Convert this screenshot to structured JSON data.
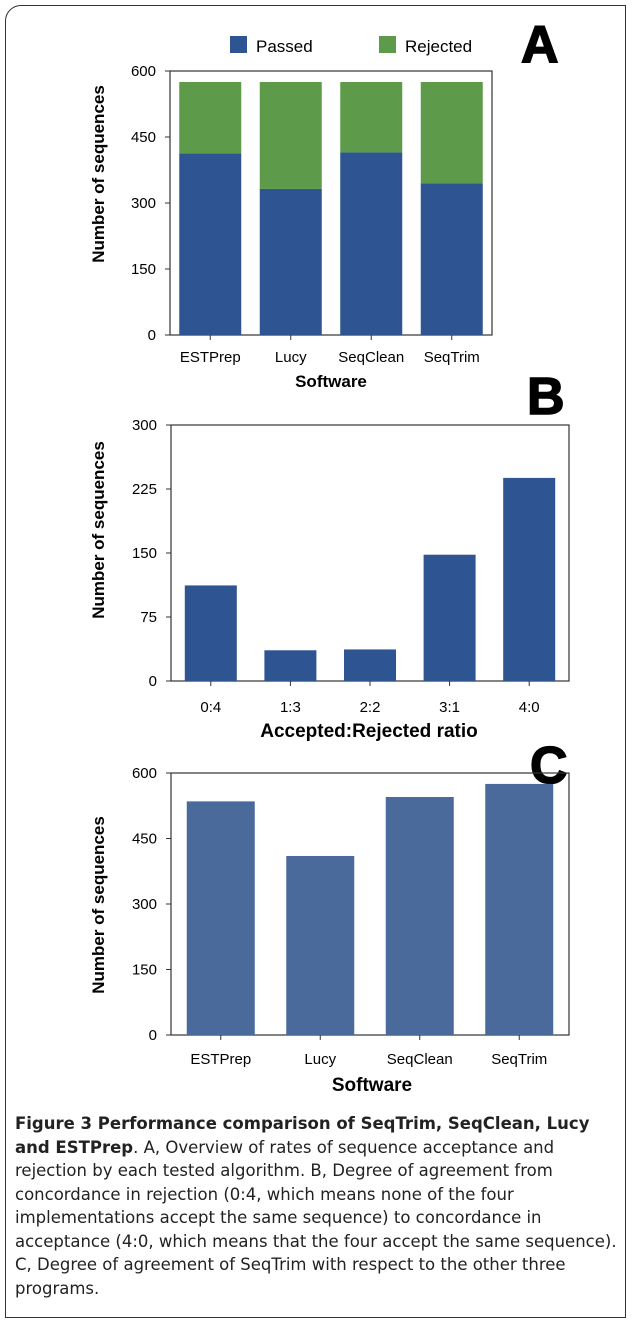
{
  "colors": {
    "passed": "#2e5491",
    "rejected": "#5d9b4a",
    "panel_b_bar": "#2e5491",
    "panel_c_bar": "#4a6a9b"
  },
  "chart_data": [
    {
      "panel": "A",
      "type": "bar",
      "stacked": true,
      "categories": [
        "ESTPrep",
        "Lucy",
        "SeqClean",
        "SeqTrim"
      ],
      "series": [
        {
          "name": "Passed",
          "values": [
            413,
            332,
            415,
            345
          ]
        },
        {
          "name": "Rejected",
          "values": [
            162,
            243,
            160,
            230
          ]
        }
      ],
      "xlabel": "Software",
      "ylabel": "Number of sequences",
      "ylim": [
        0,
        600
      ],
      "yticks": [
        "0",
        "150",
        "300",
        "450",
        "600"
      ],
      "legend": "top"
    },
    {
      "panel": "B",
      "type": "bar",
      "categories": [
        "0:4",
        "1:3",
        "2:2",
        "3:1",
        "4:0"
      ],
      "values": [
        112,
        36,
        37,
        148,
        238
      ],
      "xlabel": "Accepted:Rejected ratio",
      "ylabel": "Number of sequences",
      "ylim": [
        0,
        300
      ],
      "yticks": [
        "0",
        "75",
        "150",
        "225",
        "300"
      ]
    },
    {
      "panel": "C",
      "type": "bar",
      "categories": [
        "ESTPrep",
        "Lucy",
        "SeqClean",
        "SeqTrim"
      ],
      "values": [
        535,
        410,
        545,
        575
      ],
      "xlabel": "Software",
      "ylabel": "Number of sequences",
      "ylim": [
        0,
        600
      ],
      "yticks": [
        "0",
        "150",
        "300",
        "450",
        "600"
      ]
    }
  ],
  "caption": {
    "figure_label": "Figure 3 Performance comparison of SeqTrim, SeqClean, Lucy and ESTPrep",
    "text": ". A, Overview of rates of sequence acceptance and rejection by each tested algorithm. B, Degree of agreement from concordance in rejection (0:4, which means none of the four implementations accept the same sequence) to concordance in acceptance (4:0, which means that the four accept the same sequence). C, Degree of agreement of SeqTrim with respect to the other three programs."
  }
}
